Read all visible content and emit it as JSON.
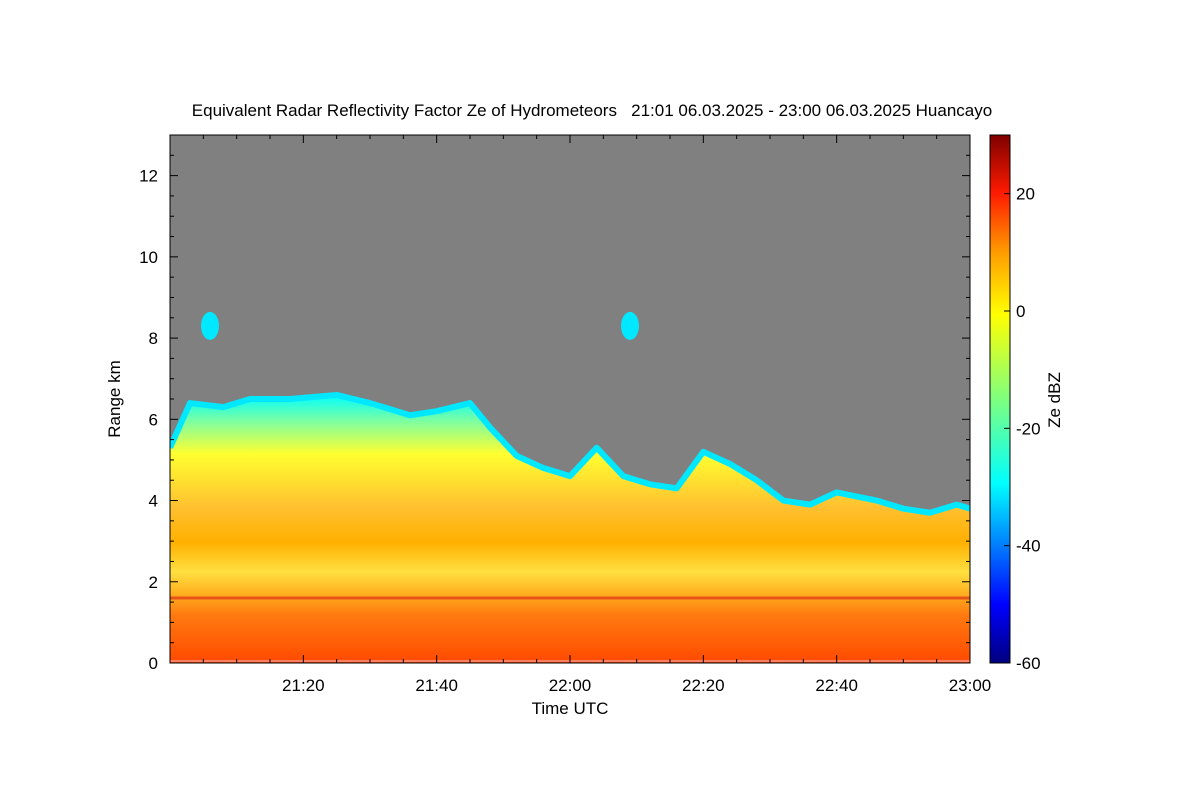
{
  "chart_data": {
    "type": "heatmap",
    "title": "Equivalent Radar Reflectivity Factor Ze of Hydrometeors   21:01 06.03.2025 - 23:00 06.03.2025 Huancayo",
    "xlabel": "Time UTC",
    "ylabel": "Range km",
    "colorbar_label": "Ze dBZ",
    "x_range_minutes": [
      0,
      120
    ],
    "x_start": "21:00",
    "x_end": "23:00",
    "x_ticks": [
      {
        "minute": 20,
        "label": "21:20"
      },
      {
        "minute": 40,
        "label": "21:40"
      },
      {
        "minute": 60,
        "label": "22:00"
      },
      {
        "minute": 80,
        "label": "22:20"
      },
      {
        "minute": 100,
        "label": "22:40"
      },
      {
        "minute": 120,
        "label": "23:00"
      }
    ],
    "ylim": [
      0,
      13
    ],
    "y_ticks": [
      {
        "value": 0,
        "label": "0"
      },
      {
        "value": 2,
        "label": "2"
      },
      {
        "value": 4,
        "label": "4"
      },
      {
        "value": 6,
        "label": "6"
      },
      {
        "value": 8,
        "label": "8"
      },
      {
        "value": 10,
        "label": "10"
      },
      {
        "value": 12,
        "label": "12"
      }
    ],
    "color_range": [
      -60,
      30
    ],
    "colorbar_ticks": [
      {
        "value": 20,
        "label": "20"
      },
      {
        "value": 0,
        "label": "0"
      },
      {
        "value": -20,
        "label": "-20"
      },
      {
        "value": -40,
        "label": "-40"
      },
      {
        "value": -60,
        "label": "-60"
      }
    ],
    "colormap": [
      "#00007f",
      "#0000ff",
      "#007fff",
      "#00ffff",
      "#7fff7f",
      "#ffff00",
      "#ff7f00",
      "#ff0000",
      "#7f0000"
    ],
    "background_color": "#808080",
    "echo_top_km": [
      {
        "minute": 0,
        "value": 5.3
      },
      {
        "minute": 3,
        "value": 6.4
      },
      {
        "minute": 8,
        "value": 6.3
      },
      {
        "minute": 12,
        "value": 6.5
      },
      {
        "minute": 18,
        "value": 6.5
      },
      {
        "minute": 25,
        "value": 6.6
      },
      {
        "minute": 30,
        "value": 6.4
      },
      {
        "minute": 36,
        "value": 6.1
      },
      {
        "minute": 40,
        "value": 6.2
      },
      {
        "minute": 45,
        "value": 6.4
      },
      {
        "minute": 48,
        "value": 5.8
      },
      {
        "minute": 52,
        "value": 5.1
      },
      {
        "minute": 56,
        "value": 4.8
      },
      {
        "minute": 60,
        "value": 4.6
      },
      {
        "minute": 64,
        "value": 5.3
      },
      {
        "minute": 68,
        "value": 4.6
      },
      {
        "minute": 72,
        "value": 4.4
      },
      {
        "minute": 76,
        "value": 4.3
      },
      {
        "minute": 80,
        "value": 5.2
      },
      {
        "minute": 84,
        "value": 4.9
      },
      {
        "minute": 88,
        "value": 4.5
      },
      {
        "minute": 92,
        "value": 4.0
      },
      {
        "minute": 96,
        "value": 3.9
      },
      {
        "minute": 100,
        "value": 4.2
      },
      {
        "minute": 106,
        "value": 4.0
      },
      {
        "minute": 110,
        "value": 3.8
      },
      {
        "minute": 114,
        "value": 3.7
      },
      {
        "minute": 118,
        "value": 3.9
      },
      {
        "minute": 120,
        "value": 3.8
      }
    ],
    "echo_patches": [
      {
        "minute": 6,
        "value": 8.3
      },
      {
        "minute": 69,
        "value": 8.3
      }
    ],
    "melting_layer_km": 1.6
  }
}
